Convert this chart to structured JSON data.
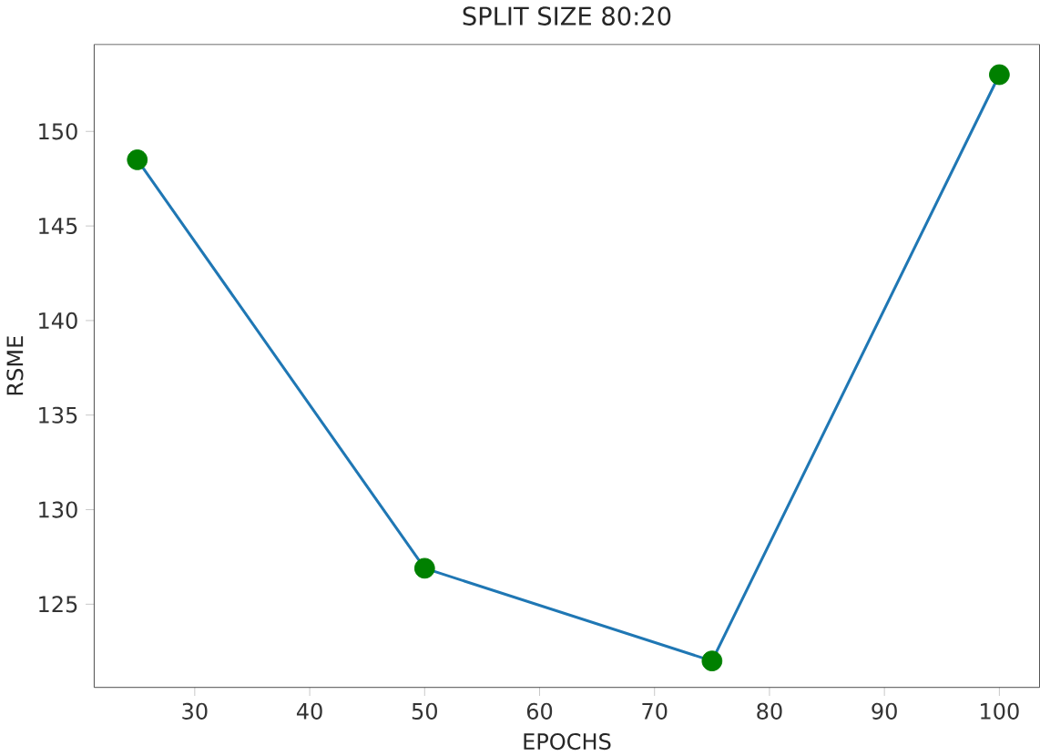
{
  "chart_data": {
    "type": "line",
    "title": "SPLIT SIZE 80:20",
    "xlabel": "EPOCHS",
    "ylabel": "RSME",
    "x": [
      25,
      50,
      75,
      100
    ],
    "series": [
      {
        "color": "#1f77b4",
        "values": [
          148.5,
          126.9,
          122.0,
          153.0
        ]
      },
      {
        "type": "scatter",
        "color": "#008000",
        "marker": "circle",
        "values": [
          148.5,
          126.9,
          122.0,
          153.0
        ]
      }
    ],
    "xlim": [
      21.25,
      103.5
    ],
    "ylim": [
      120.6,
      154.6
    ],
    "xticks": [
      30,
      40,
      50,
      60,
      70,
      80,
      90,
      100
    ],
    "yticks": [
      125,
      130,
      135,
      140,
      145,
      150
    ],
    "grid": false
  }
}
